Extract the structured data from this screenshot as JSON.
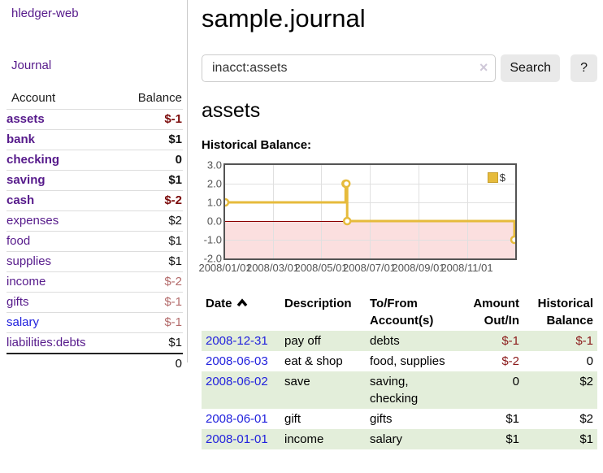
{
  "colors": {
    "brand_link": "#561a8b",
    "unvisited_link": "#2121dd",
    "negative_strong": "#7b0b0b",
    "negative_soft": "#b36a6a",
    "register_row_green": "#e3eeda",
    "register_negative": "#8b1a1a",
    "chart_line": "#e6bb3c",
    "chart_negative_region": "#fbdfdf",
    "chart_zero_line": "#8b0000",
    "chart_border": "#545454"
  },
  "sidebar": {
    "brand": "hledger-web",
    "journal_link": "Journal",
    "accounts_table": {
      "headers": [
        "Account",
        "Balance"
      ],
      "rows": [
        {
          "account": "assets",
          "balance": "$-1",
          "level": 1,
          "emphasized": true,
          "negative": true,
          "link_style": "visited"
        },
        {
          "account": "bank",
          "balance": "$1",
          "level": 2,
          "emphasized": true,
          "negative": false,
          "link_style": "visited"
        },
        {
          "account": "checking",
          "balance": "0",
          "level": 3,
          "emphasized": true,
          "negative": false,
          "link_style": "visited"
        },
        {
          "account": "saving",
          "balance": "$1",
          "level": 3,
          "emphasized": true,
          "negative": false,
          "link_style": "visited"
        },
        {
          "account": "cash",
          "balance": "$-2",
          "level": 2,
          "emphasized": true,
          "negative": true,
          "link_style": "visited"
        },
        {
          "account": "expenses",
          "balance": "$2",
          "level": 1,
          "emphasized": false,
          "negative": false,
          "link_style": "visited"
        },
        {
          "account": "food",
          "balance": "$1",
          "level": 2,
          "emphasized": false,
          "negative": false,
          "link_style": "visited"
        },
        {
          "account": "supplies",
          "balance": "$1",
          "level": 2,
          "emphasized": false,
          "negative": false,
          "link_style": "visited"
        },
        {
          "account": "income",
          "balance": "$-2",
          "level": 1,
          "emphasized": false,
          "negative": true,
          "link_style": "visited"
        },
        {
          "account": "gifts",
          "balance": "$-1",
          "level": 2,
          "emphasized": false,
          "negative": true,
          "link_style": "visited"
        },
        {
          "account": "salary",
          "balance": "$-1",
          "level": 2,
          "emphasized": false,
          "negative": true,
          "link_style": "unvisited"
        },
        {
          "account": "liabilities:debts",
          "balance": "$1",
          "level": 1,
          "emphasized": false,
          "negative": false,
          "link_style": "visited"
        }
      ],
      "total": "0"
    }
  },
  "page": {
    "title": "sample.journal",
    "account_heading": "assets",
    "chart_title": "Historical Balance:"
  },
  "search": {
    "value": "inacct:assets",
    "clear_icon": "×",
    "button_label": "Search",
    "help_label": "?"
  },
  "chart_data": {
    "type": "line",
    "step": true,
    "title": "Historical Balance",
    "series": [
      {
        "name": "$",
        "color": "#e6bb3c",
        "points": [
          [
            "2008-01-01",
            1
          ],
          [
            "2008-06-01",
            2
          ],
          [
            "2008-06-02",
            2
          ],
          [
            "2008-06-03",
            0
          ],
          [
            "2008-12-31",
            -1
          ]
        ]
      }
    ],
    "x_range": [
      "2008-01-01",
      "2009-01-01"
    ],
    "x_ticks": [
      {
        "date": "2008-01-01",
        "label": "2008/01/01"
      },
      {
        "date": "2008-03-01",
        "label": "2008/03/01"
      },
      {
        "date": "2008-05-01",
        "label": "2008/05/01"
      },
      {
        "date": "2008-07-01",
        "label": "2008/07/01"
      },
      {
        "date": "2008-09-01",
        "label": "2008/09/01"
      },
      {
        "date": "2008-11-01",
        "label": "2008/11/01"
      }
    ],
    "y_ticks": [
      {
        "value": 3,
        "label": "3.0"
      },
      {
        "value": 2,
        "label": "2.0"
      },
      {
        "value": 1,
        "label": "1.0"
      },
      {
        "value": 0,
        "label": "0.0"
      },
      {
        "value": -1,
        "label": "-1.0"
      },
      {
        "value": -2,
        "label": "-2.0"
      }
    ],
    "ylim": [
      -2,
      3
    ],
    "grid": true,
    "legend": {
      "position": "top-right",
      "entries": [
        "$"
      ]
    },
    "negative_region_shaded": true
  },
  "register": {
    "headers": [
      {
        "label": "Date",
        "sorted": "asc"
      },
      {
        "label": "Description"
      },
      {
        "label": "To/From Account(s)"
      },
      {
        "label": "Amount Out/In"
      },
      {
        "label": "Historical Balance"
      }
    ],
    "rows": [
      {
        "date": "2008-12-31",
        "description": "pay off",
        "accounts": "debts",
        "amount": "$-1",
        "amount_negative": true,
        "balance": "$-1",
        "balance_negative": true
      },
      {
        "date": "2008-06-03",
        "description": "eat & shop",
        "accounts": "food, supplies",
        "amount": "$-2",
        "amount_negative": true,
        "balance": "0",
        "balance_negative": false
      },
      {
        "date": "2008-06-02",
        "description": "save",
        "accounts": "saving, checking",
        "amount": "0",
        "amount_negative": false,
        "balance": "$2",
        "balance_negative": false
      },
      {
        "date": "2008-06-01",
        "description": "gift",
        "accounts": "gifts",
        "amount": "$1",
        "amount_negative": false,
        "balance": "$2",
        "balance_negative": false
      },
      {
        "date": "2008-01-01",
        "description": "income",
        "accounts": "salary",
        "amount": "$1",
        "amount_negative": false,
        "balance": "$1",
        "balance_negative": false
      }
    ]
  }
}
